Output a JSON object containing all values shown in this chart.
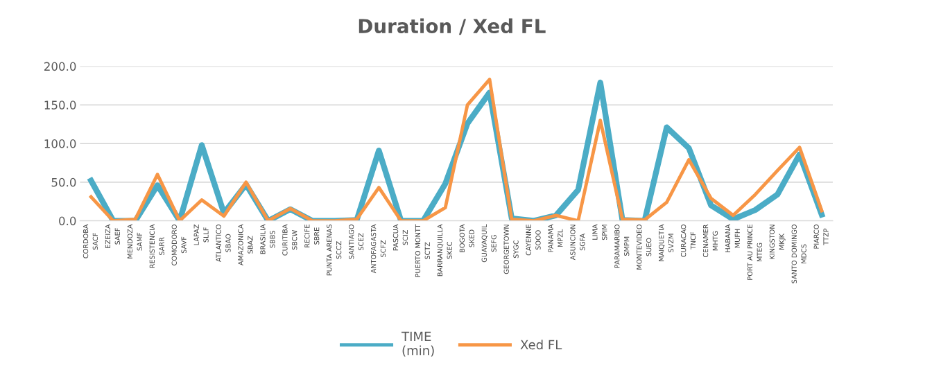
{
  "chart_data": {
    "type": "line",
    "title": "Duration / Xed FL",
    "categories": [
      "CORDOBA\nSACF",
      "EZEIZA\nSAEF",
      "MENDOZA\nSAMF",
      "RESISTENCIA\nSARR",
      "COMODORO\nSAVF",
      "LAPAZ\nSLLF",
      "ATLANTICO\nSBAO",
      "AMAZONICA\nSBAZ",
      "BRASILIA\nSBBS",
      "CURITIBA\nSBCW",
      "RECIFE\nSBRE",
      "PUNTA ARENAS\nSCCZ",
      "SANTIAGO\nSCEZ",
      "ANTOFAGASTA\nSCFZ",
      "PASCUA\nSCIZ",
      "PUERTO MONTT\nSCTZ",
      "BARRANQUILLA\nSKEC",
      "BOGOTA\nSKED",
      "GUAYAQUIL\nSEFG",
      "GEORGETOWN\nSYGC",
      "CAYENNE\nSOOO",
      "PANAMA\nMPZL",
      "ASUNCION\nSGFA",
      "LIMA\nSPIM",
      "PARAMARIBO\nSMPM",
      "MONTEVIDEO\nSUEO",
      "MAIQUETIA\nSVZM",
      "CURACAO\nTNCF",
      "CENAMER\nMHTG",
      "HABANA\nMUFH",
      "PORT AU PRINCE\nMTEG",
      "KINGSTON\nMKJK",
      "SANTO DOMINGO\nMDCS",
      "PIARCO\nTTZP"
    ],
    "series": [
      {
        "name": "TIME\n(min)",
        "color": "#4bacc6",
        "values": [
          52,
          0,
          0,
          46,
          0,
          98,
          10,
          47,
          0,
          15,
          0,
          0,
          1,
          91,
          0,
          0,
          48,
          126,
          166,
          3,
          0,
          7,
          40,
          179,
          1,
          0,
          121,
          94,
          20,
          2,
          14,
          34,
          86,
          8
        ]
      },
      {
        "name": "Xed FL",
        "color": "#f79646",
        "values": [
          31,
          0,
          2,
          60,
          0,
          27,
          6,
          50,
          0,
          16,
          0,
          0,
          2,
          43,
          0,
          0,
          17,
          150,
          183,
          2,
          0,
          7,
          0,
          130,
          2,
          1,
          24,
          79,
          29,
          7,
          34,
          65,
          95,
          13
        ]
      }
    ],
    "ylim": [
      0,
      200
    ],
    "yticks": [
      {
        "value": 0,
        "label": "0.0"
      },
      {
        "value": 50,
        "label": "50.0"
      },
      {
        "value": 100,
        "label": "100.0"
      },
      {
        "value": 150,
        "label": "150.0"
      },
      {
        "value": 200,
        "label": "200.0"
      }
    ],
    "grid": "y",
    "legend": "bottom",
    "marker": "none",
    "line_style": "solid"
  }
}
